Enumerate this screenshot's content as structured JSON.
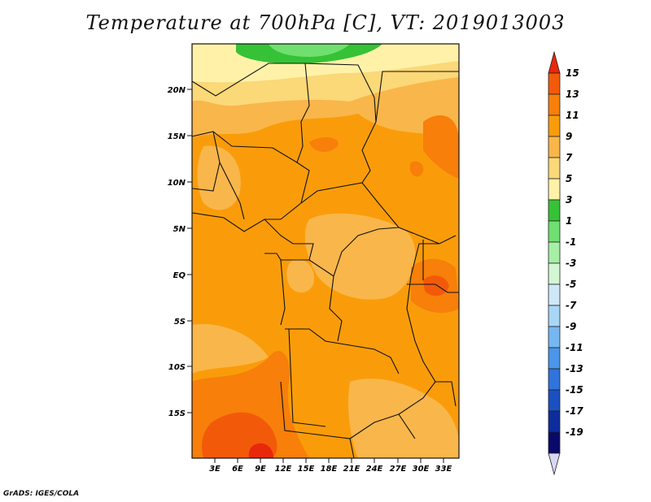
{
  "title": "Temperature at 700hPa [C], VT: 2019013003",
  "credit": "GrADS: IGES/COLA",
  "map": {
    "lat_labels": [
      "20N",
      "15N",
      "10N",
      "5N",
      "EQ",
      "5S",
      "10S",
      "15S"
    ],
    "lon_labels": [
      "3E",
      "6E",
      "9E",
      "12E",
      "15E",
      "18E",
      "21E",
      "24E",
      "27E",
      "30E",
      "33E"
    ]
  },
  "colorbar": {
    "labels": [
      "15",
      "13",
      "11",
      "9",
      "7",
      "5",
      "3",
      "1",
      "-1",
      "-3",
      "-5",
      "-7",
      "-9",
      "-11",
      "-13",
      "-15",
      "-17",
      "-19"
    ],
    "colors": [
      "#e8280a",
      "#f25a0a",
      "#f77f0a",
      "#fa9c0a",
      "#f9b64a",
      "#fbd878",
      "#fff2a8",
      "#36c236",
      "#6fe06f",
      "#a6f0a6",
      "#d2f7d2",
      "#cfe8f7",
      "#a8d6f7",
      "#76b7f2",
      "#4a96ea",
      "#2e74dc",
      "#1a50c2",
      "#0d2c9e",
      "#09096b",
      "#d8d8f5"
    ]
  }
}
